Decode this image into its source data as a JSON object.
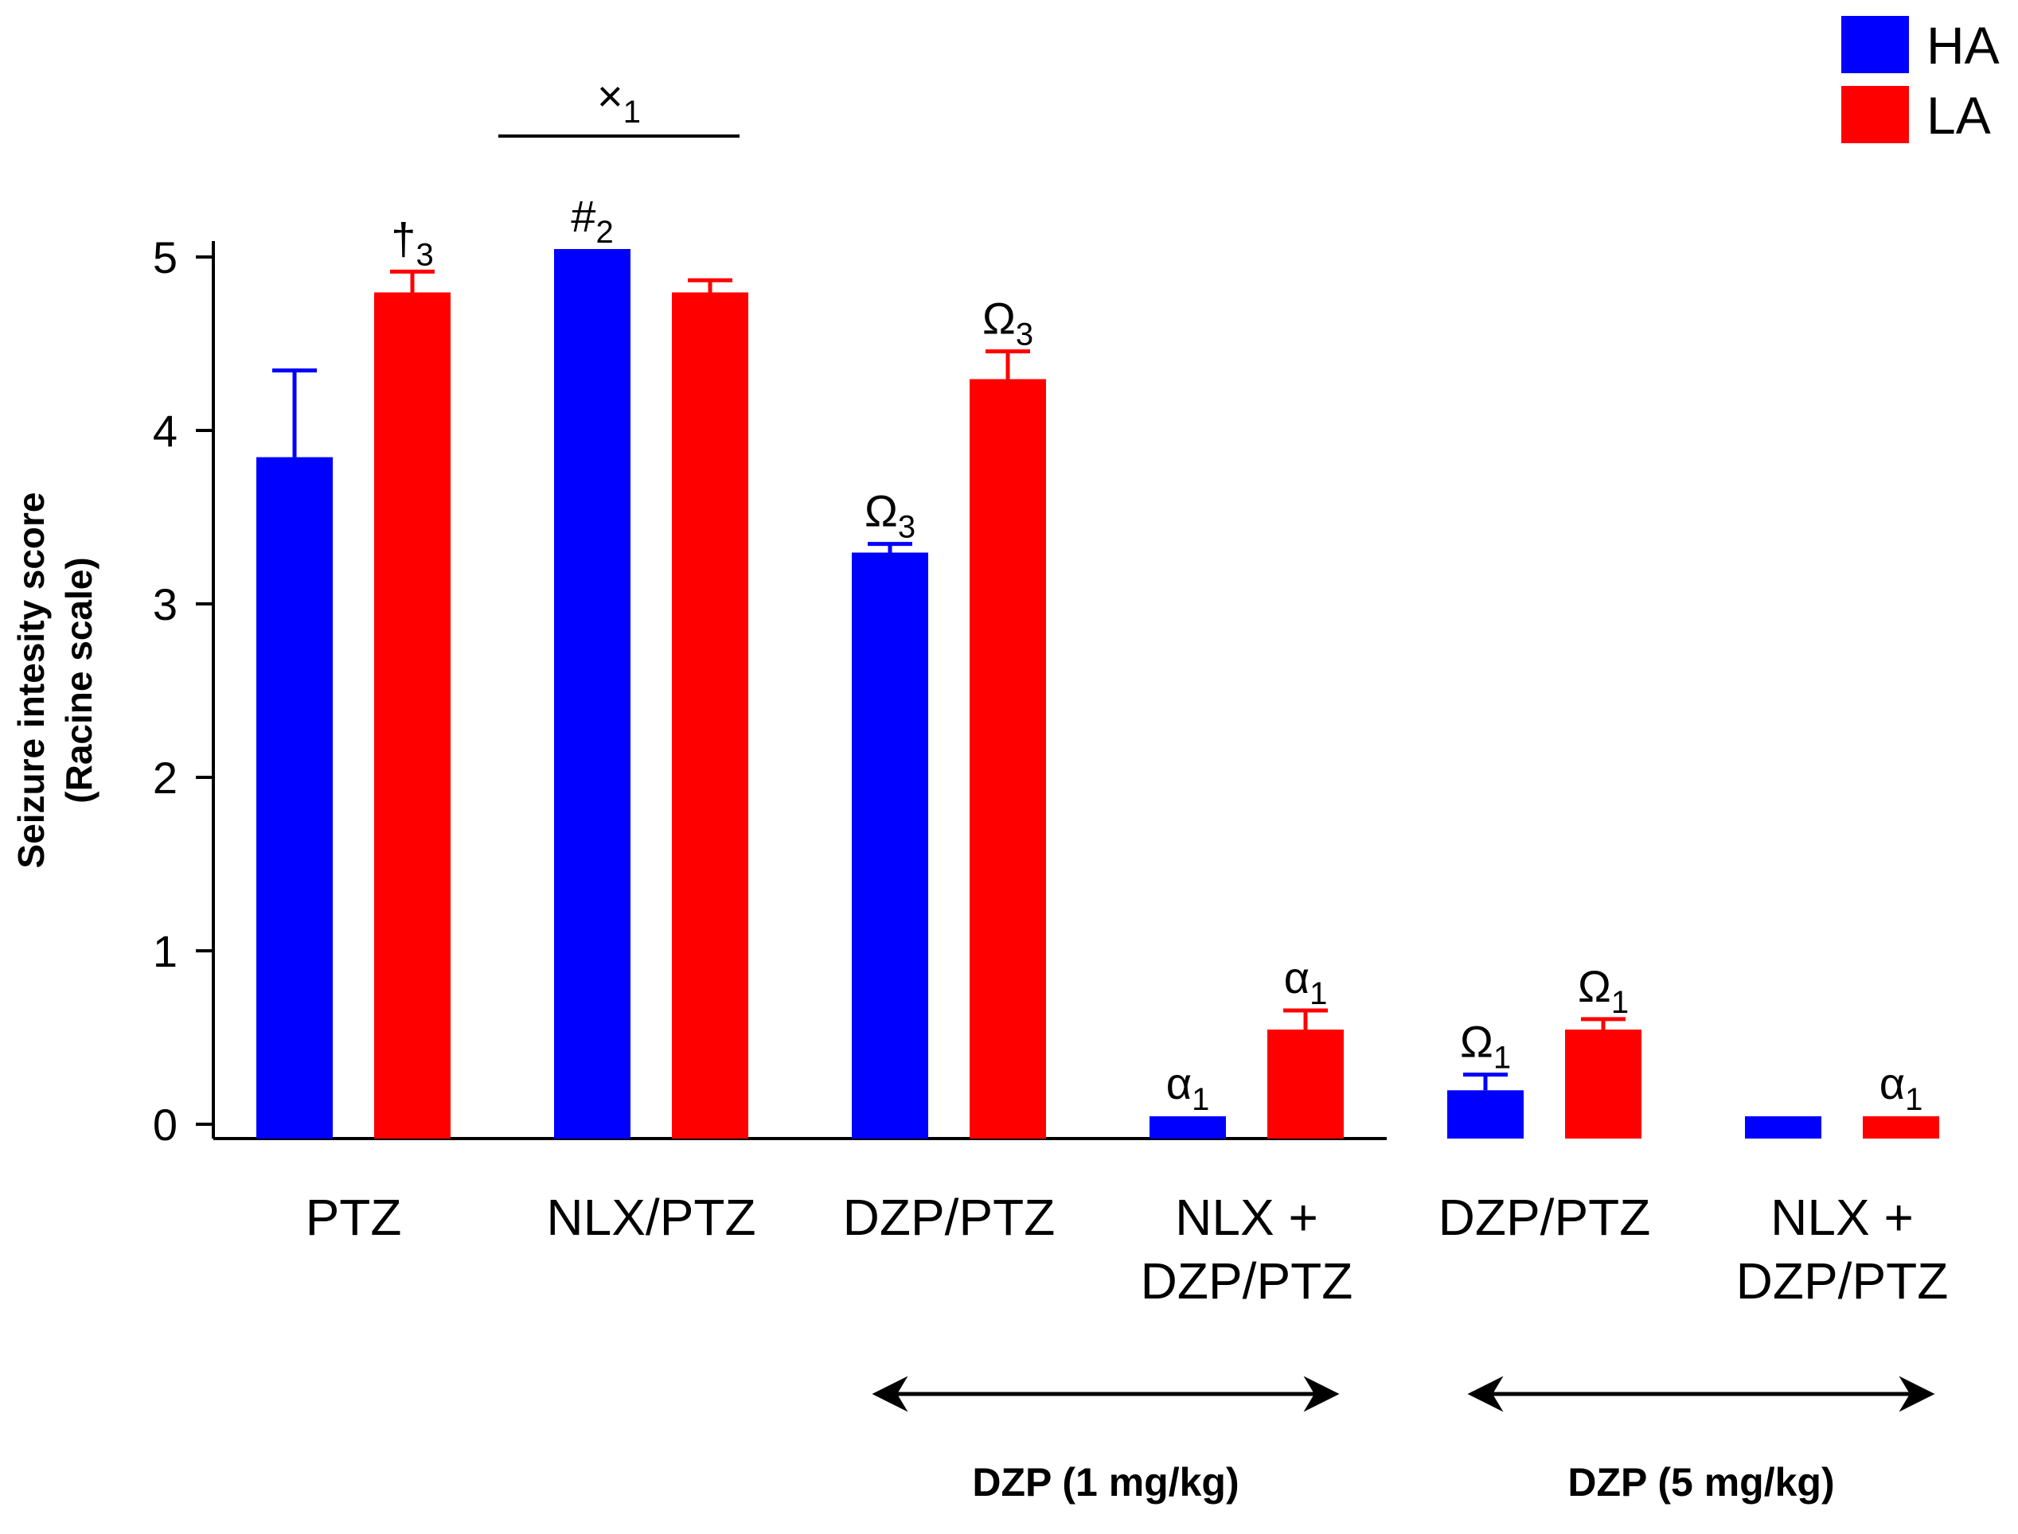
{
  "chart_data": {
    "type": "bar",
    "title": "",
    "xlabel": "",
    "ylabel": "Seizure intesity score",
    "ylabel_line2": "(Racine scale)",
    "ylim": [
      0,
      5
    ],
    "yticks": [
      0,
      1,
      2,
      3,
      4,
      5
    ],
    "ytick_labels": [
      "0",
      "1",
      "2",
      "3",
      "4",
      "5"
    ],
    "categories": [
      [
        "PTZ"
      ],
      [
        "NLX/PTZ"
      ],
      [
        "DZP/PTZ"
      ],
      [
        "NLX +",
        "DZP/PTZ"
      ],
      [
        "DZP/PTZ"
      ],
      [
        "NLX +",
        "DZP/PTZ"
      ]
    ],
    "series": [
      {
        "name": "HA",
        "color": "#0000ff",
        "values": [
          3.8,
          5.0,
          3.25,
          0.0,
          0.15,
          0.0
        ],
        "errors": [
          0.5,
          0.0,
          0.05,
          0.0,
          0.09,
          0.0
        ],
        "annotations": [
          null,
          {
            "sym": "#",
            "sub": "2"
          },
          {
            "sym": "Ω",
            "sub": "3"
          },
          {
            "sym": "α",
            "sub": "1"
          },
          {
            "sym": "Ω",
            "sub": "1"
          },
          null
        ]
      },
      {
        "name": "LA",
        "color": "#ff0000",
        "values": [
          4.75,
          4.75,
          4.25,
          0.5,
          0.5,
          0.0
        ],
        "errors": [
          0.12,
          0.07,
          0.16,
          0.11,
          0.06,
          0.0
        ],
        "annotations": [
          {
            "sym": "†",
            "sub": "3"
          },
          null,
          {
            "sym": "Ω",
            "sub": "3"
          },
          {
            "sym": "α",
            "sub": "1"
          },
          {
            "sym": "Ω",
            "sub": "1"
          },
          {
            "sym": "α",
            "sub": "1"
          }
        ]
      }
    ],
    "comparison": {
      "between": [
        0,
        1
      ],
      "sym": "×",
      "sub": "1"
    },
    "legend_location": "top-right",
    "dose_groups": [
      {
        "label": "DZP (1 mg/kg)",
        "from_category": 2,
        "to_category": 3
      },
      {
        "label": "DZP (5 mg/kg)",
        "from_category": 4,
        "to_category": 5
      }
    ]
  }
}
